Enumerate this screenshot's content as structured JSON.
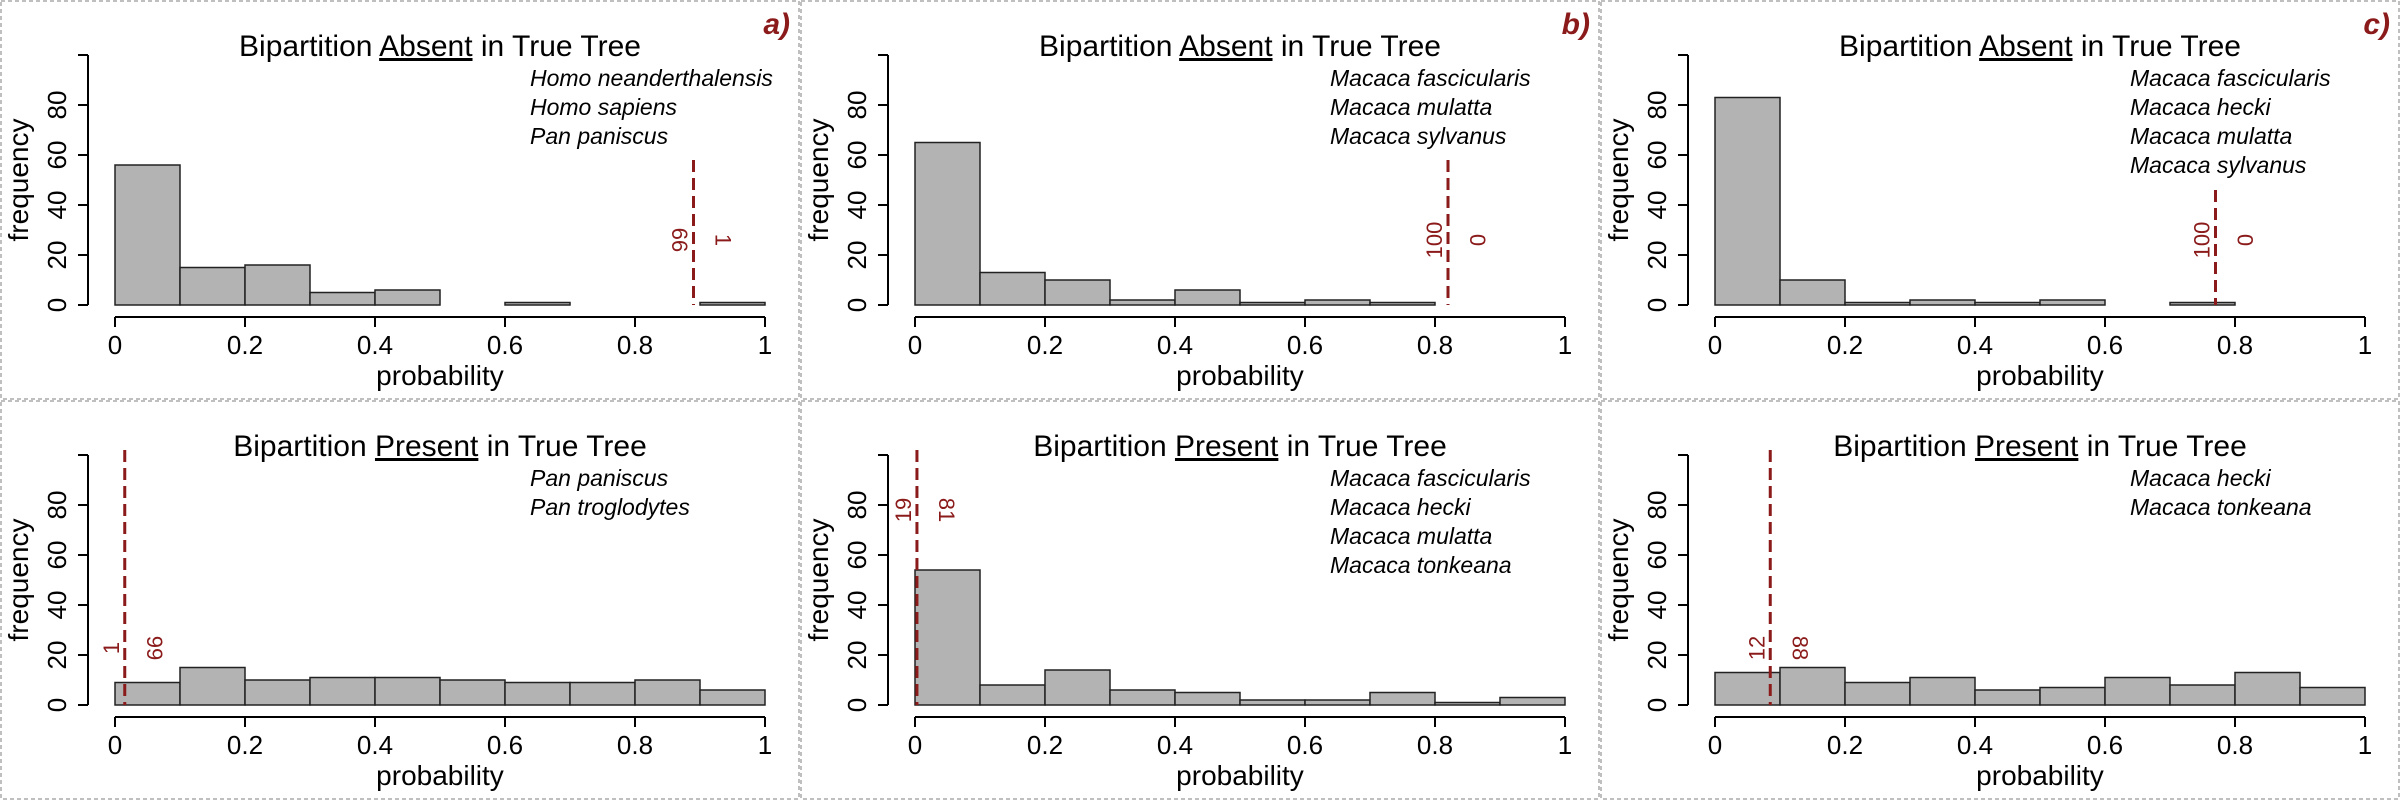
{
  "colors": {
    "bar_fill": "#b3b3b3",
    "bar_stroke": "#222222",
    "marker": "#8b1a1a",
    "panel_border": "#aaaaaa",
    "text": "#000000"
  },
  "chart_data": [
    {
      "type": "bar",
      "panel": "a)",
      "title_prefix": "Bipartition ",
      "title_keyword": "Absent",
      "title_suffix": " in True Tree",
      "xlabel": "probability",
      "ylabel": "frequency",
      "xlim": [
        0,
        1
      ],
      "ylim": [
        0,
        100
      ],
      "xticks": [
        "0",
        "0.2",
        "0.4",
        "0.6",
        "0.8",
        "1"
      ],
      "yticks": [
        "0",
        "20",
        "40",
        "60",
        "80"
      ],
      "bin_edges": [
        0,
        0.1,
        0.2,
        0.3,
        0.4,
        0.5,
        0.6,
        0.7,
        0.8,
        0.9,
        1.0
      ],
      "values": [
        56,
        15,
        16,
        5,
        6,
        0,
        1,
        0,
        0,
        1
      ],
      "taxa": [
        "Homo neanderthalensis",
        "Homo sapiens",
        "Pan paniscus"
      ],
      "marker": {
        "x": 0.89,
        "left_label": "99",
        "right_label": "1"
      }
    },
    {
      "type": "bar",
      "panel": "b)",
      "title_prefix": "Bipartition ",
      "title_keyword": "Absent",
      "title_suffix": " in True Tree",
      "xlabel": "probability",
      "ylabel": "frequency",
      "xlim": [
        0,
        1
      ],
      "ylim": [
        0,
        100
      ],
      "xticks": [
        "0",
        "0.2",
        "0.4",
        "0.6",
        "0.8",
        "1"
      ],
      "yticks": [
        "0",
        "20",
        "40",
        "60",
        "80"
      ],
      "bin_edges": [
        0,
        0.1,
        0.2,
        0.3,
        0.4,
        0.5,
        0.6,
        0.7,
        0.8
      ],
      "values": [
        65,
        13,
        10,
        2,
        6,
        1,
        2,
        1
      ],
      "taxa": [
        "Macaca fascicularis",
        "Macaca mulatta",
        "Macaca sylvanus"
      ],
      "marker": {
        "x": 0.82,
        "left_label": "100",
        "right_label": "0"
      }
    },
    {
      "type": "bar",
      "panel": "c)",
      "title_prefix": "Bipartition ",
      "title_keyword": "Absent",
      "title_suffix": " in True Tree",
      "xlabel": "probability",
      "ylabel": "frequency",
      "xlim": [
        0,
        1
      ],
      "ylim": [
        0,
        100
      ],
      "xticks": [
        "0",
        "0.2",
        "0.4",
        "0.6",
        "0.8",
        "1"
      ],
      "yticks": [
        "0",
        "20",
        "40",
        "60",
        "80"
      ],
      "bin_edges": [
        0,
        0.1,
        0.2,
        0.3,
        0.4,
        0.5,
        0.6,
        0.7,
        0.8
      ],
      "values": [
        83,
        10,
        1,
        2,
        1,
        2,
        0,
        1
      ],
      "taxa": [
        "Macaca fascicularis",
        "Macaca hecki",
        "Macaca mulatta",
        "Macaca sylvanus"
      ],
      "marker": {
        "x": 0.77,
        "left_label": "100",
        "right_label": "0"
      }
    },
    {
      "type": "bar",
      "panel": "",
      "title_prefix": "Bipartition ",
      "title_keyword": "Present",
      "title_suffix": " in True Tree",
      "xlabel": "probability",
      "ylabel": "frequency",
      "xlim": [
        0,
        1
      ],
      "ylim": [
        0,
        100
      ],
      "xticks": [
        "0",
        "0.2",
        "0.4",
        "0.6",
        "0.8",
        "1"
      ],
      "yticks": [
        "0",
        "20",
        "40",
        "60",
        "80"
      ],
      "bin_edges": [
        0,
        0.1,
        0.2,
        0.3,
        0.4,
        0.5,
        0.6,
        0.7,
        0.8,
        0.9,
        1.0
      ],
      "values": [
        9,
        15,
        10,
        11,
        11,
        10,
        9,
        9,
        10,
        6
      ],
      "taxa": [
        "Pan paniscus",
        "Pan troglodytes"
      ],
      "marker": {
        "x": 0.015,
        "left_label": "1",
        "right_label": "99"
      }
    },
    {
      "type": "bar",
      "panel": "",
      "title_prefix": "Bipartition ",
      "title_keyword": "Present",
      "title_suffix": " in True Tree",
      "xlabel": "probability",
      "ylabel": "frequency",
      "xlim": [
        0,
        1
      ],
      "ylim": [
        0,
        100
      ],
      "xticks": [
        "0",
        "0.2",
        "0.4",
        "0.6",
        "0.8",
        "1"
      ],
      "yticks": [
        "0",
        "20",
        "40",
        "60",
        "80"
      ],
      "bin_edges": [
        0,
        0.1,
        0.2,
        0.3,
        0.4,
        0.5,
        0.6,
        0.7,
        0.8,
        0.9,
        1.0
      ],
      "values": [
        54,
        8,
        14,
        6,
        5,
        2,
        2,
        5,
        1,
        3
      ],
      "taxa": [
        "Macaca fascicularis",
        "Macaca hecki",
        "Macaca mulatta",
        "Macaca tonkeana"
      ],
      "marker": {
        "x": 0.003,
        "left_label": "19",
        "right_label": "81"
      }
    },
    {
      "type": "bar",
      "panel": "",
      "title_prefix": "Bipartition ",
      "title_keyword": "Present",
      "title_suffix": " in True Tree",
      "xlabel": "probability",
      "ylabel": "frequency",
      "xlim": [
        0,
        1
      ],
      "ylim": [
        0,
        100
      ],
      "xticks": [
        "0",
        "0.2",
        "0.4",
        "0.6",
        "0.8",
        "1"
      ],
      "yticks": [
        "0",
        "20",
        "40",
        "60",
        "80"
      ],
      "bin_edges": [
        0,
        0.1,
        0.2,
        0.3,
        0.4,
        0.5,
        0.6,
        0.7,
        0.8,
        0.9,
        1.0
      ],
      "values": [
        13,
        15,
        9,
        11,
        6,
        7,
        11,
        8,
        13,
        7
      ],
      "taxa": [
        "Macaca hecki",
        "Macaca tonkeana"
      ],
      "marker": {
        "x": 0.085,
        "left_label": "12",
        "right_label": "88"
      }
    }
  ]
}
